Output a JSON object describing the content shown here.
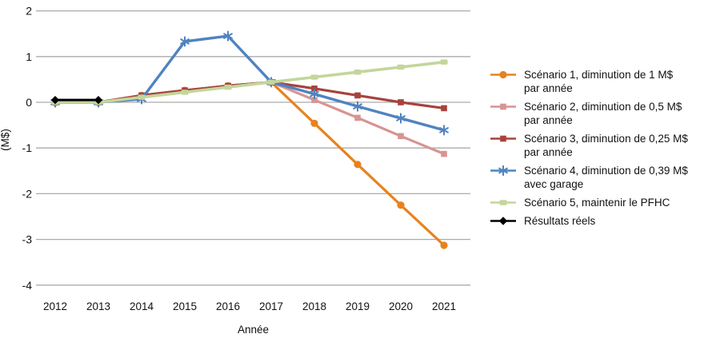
{
  "chart_data": {
    "type": "line",
    "x": [
      2012,
      2013,
      2014,
      2015,
      2016,
      2017,
      2018,
      2019,
      2020,
      2021
    ],
    "xlabel": "Année",
    "ylabel": "(M$)",
    "ylim": [
      -4,
      2
    ],
    "yticks": [
      2,
      1,
      0,
      -1,
      -2,
      -3,
      -4
    ],
    "grid": true,
    "legend_position": "right",
    "series": [
      {
        "name": "Scénario 1, diminution de 1 M$ par année",
        "slug": "scenario-1",
        "label_lines": [
          "Scénario 1, diminution de 1 M$",
          "par année"
        ],
        "color": "#E8821E",
        "marker": "circle",
        "line_width": 3.2,
        "values": [
          0,
          0,
          0.15,
          0.26,
          0.36,
          0.44,
          -0.46,
          -1.36,
          -2.25,
          -3.13
        ]
      },
      {
        "name": "Scénario 2, diminution de 0,5 M$ par année",
        "slug": "scenario-2",
        "label_lines": [
          "Scénario 2, diminution de 0,5 M$",
          "par année"
        ],
        "color": "#D79492",
        "marker": "square",
        "line_width": 3.2,
        "values": [
          0,
          0,
          0.15,
          0.26,
          0.36,
          0.44,
          0.05,
          -0.34,
          -0.74,
          -1.13
        ]
      },
      {
        "name": "Scénario 3, diminution de 0,25 M$ par année",
        "slug": "scenario-3",
        "label_lines": [
          "Scénario 3, diminution de 0,25 M$",
          "par année"
        ],
        "color": "#A8423C",
        "marker": "square",
        "line_width": 3.2,
        "values": [
          0,
          0,
          0.15,
          0.26,
          0.36,
          0.44,
          0.3,
          0.15,
          0.0,
          -0.13
        ]
      },
      {
        "name": "Scénario 4, diminution de 0,39 M$ avec garage",
        "slug": "scenario-4",
        "label_lines": [
          "Scénario 4, diminution de 0,39 M$",
          "avec garage"
        ],
        "color": "#5083C0",
        "marker": "asterisk",
        "line_width": 3.4,
        "values": [
          0,
          0,
          0.07,
          1.33,
          1.45,
          0.44,
          0.18,
          -0.09,
          -0.35,
          -0.61
        ]
      },
      {
        "name": "Scénario 5, maintenir le PFHC",
        "slug": "scenario-5",
        "label_lines": [
          "Scénario 5, maintenir le PFHC"
        ],
        "color": "#C3D69B",
        "marker": "dash-square",
        "line_width": 3.6,
        "values": [
          0,
          0,
          0.11,
          0.22,
          0.33,
          0.44,
          0.55,
          0.66,
          0.77,
          0.88
        ]
      },
      {
        "name": "Résultats réels",
        "slug": "resultats-reels",
        "label_lines": [
          "Résultats réels"
        ],
        "color": "#000000",
        "marker": "diamond",
        "line_width": 3.0,
        "values": [
          0.05,
          0.05,
          null,
          null,
          null,
          null,
          null,
          null,
          null,
          null
        ]
      }
    ]
  },
  "colors": {
    "gridline": "#ABABAB",
    "tick_text": "#111111"
  }
}
